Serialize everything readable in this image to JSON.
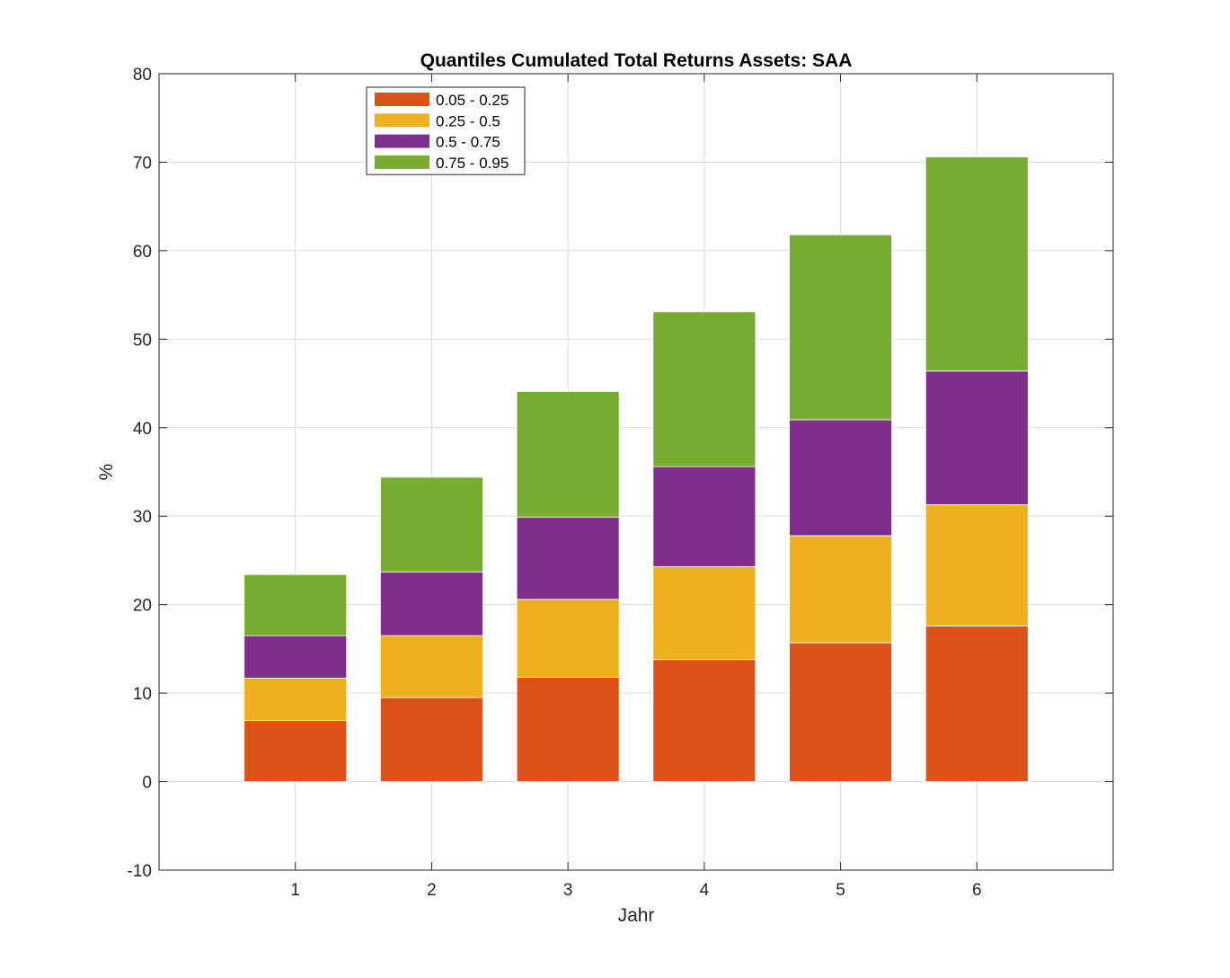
{
  "chart_data": {
    "type": "bar",
    "stacked": true,
    "title": "Quantiles Cumulated Total Returns Assets: SAA",
    "xlabel": "Jahr",
    "ylabel": "%",
    "categories": [
      "1",
      "2",
      "3",
      "4",
      "5",
      "6"
    ],
    "xlim": [
      0,
      7
    ],
    "ylim": [
      -10,
      80
    ],
    "yticks": [
      -10,
      0,
      10,
      20,
      30,
      40,
      50,
      60,
      70,
      80
    ],
    "grid": true,
    "legend_position": "top-left",
    "series": [
      {
        "name": "0.05 - 0.25",
        "color": "#D95319",
        "values": [
          6.9,
          9.5,
          11.8,
          13.8,
          15.7,
          17.6
        ]
      },
      {
        "name": "0.25 - 0.5",
        "color": "#EDB120",
        "values": [
          4.8,
          7.0,
          8.8,
          10.5,
          12.1,
          13.7
        ]
      },
      {
        "name": "0.5 - 0.75",
        "color": "#7E2F8E",
        "values": [
          4.8,
          7.2,
          9.3,
          11.3,
          13.1,
          15.1
        ]
      },
      {
        "name": "0.75 - 0.95",
        "color": "#77AC30",
        "values": [
          6.9,
          10.7,
          14.2,
          17.5,
          20.9,
          24.2
        ]
      }
    ]
  }
}
